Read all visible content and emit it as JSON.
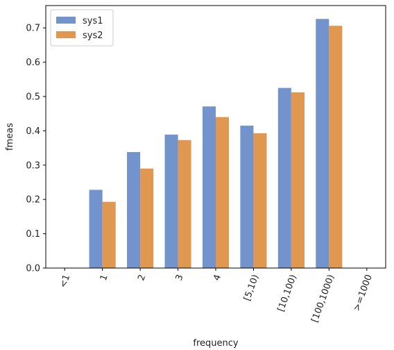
{
  "chart_data": {
    "type": "bar",
    "title": "",
    "xlabel": "frequency",
    "ylabel": "fmeas",
    "categories": [
      "<1",
      "1",
      "2",
      "3",
      "4",
      "[5,10)",
      "[10,100)",
      "[100,1000)",
      ">=1000"
    ],
    "series": [
      {
        "name": "sys1",
        "color": "#7393cd",
        "values": [
          0,
          0.228,
          0.338,
          0.389,
          0.471,
          0.415,
          0.525,
          0.726,
          0
        ]
      },
      {
        "name": "sys2",
        "color": "#e0974f",
        "values": [
          0,
          0.193,
          0.29,
          0.373,
          0.44,
          0.393,
          0.512,
          0.706,
          0
        ]
      }
    ],
    "ylim": [
      0,
      0.765
    ],
    "yticks": [
      "0.0",
      "0.1",
      "0.2",
      "0.3",
      "0.4",
      "0.5",
      "0.6",
      "0.7"
    ],
    "legend_position": "top-left",
    "grid": false,
    "xtick_rotation": 70
  }
}
